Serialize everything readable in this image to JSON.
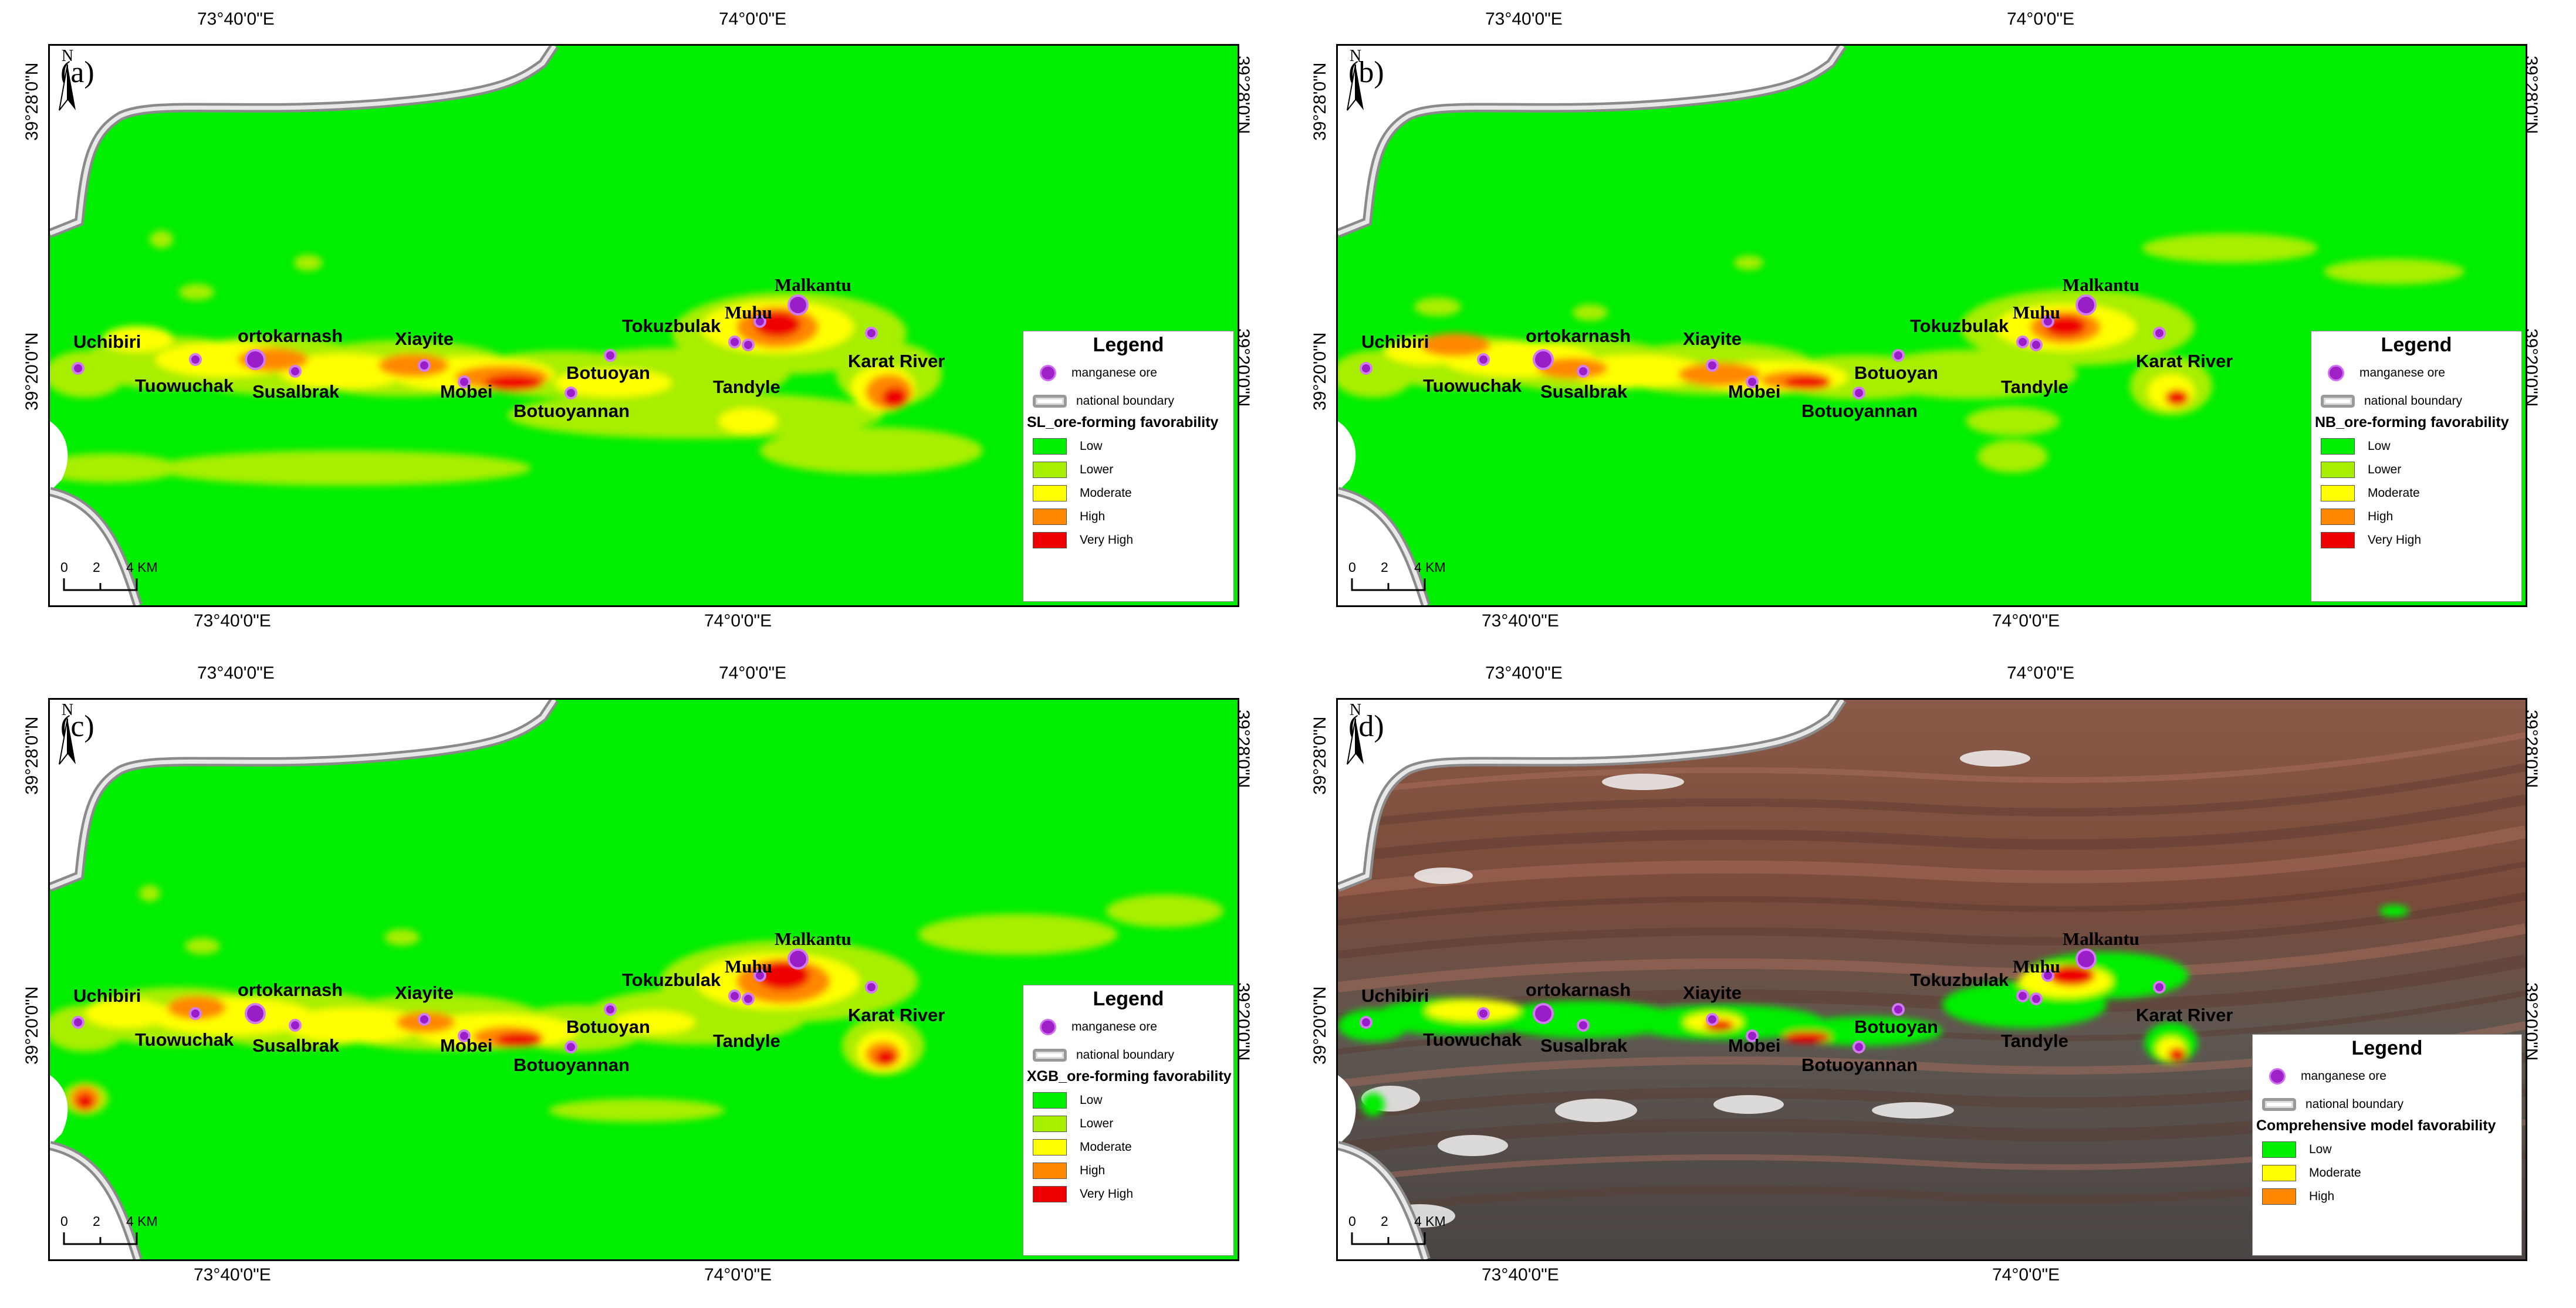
{
  "coords": {
    "lon_left": "73°40'0\"E",
    "lon_right": "74°0'0\"E",
    "lat_top": "39°28'0\"N",
    "lat_mid": "39°20'0\"N"
  },
  "sites": [
    {
      "name": "Uchibiri",
      "font": "sans"
    },
    {
      "name": "ortokarnash",
      "font": "sans"
    },
    {
      "name": "Tuowuchak",
      "font": "sans"
    },
    {
      "name": "Susalbrak",
      "font": "sans"
    },
    {
      "name": "Xiayite",
      "font": "sans"
    },
    {
      "name": "Mobei",
      "font": "sans"
    },
    {
      "name": "Botuoyan",
      "font": "sans"
    },
    {
      "name": "Botuoyannan",
      "font": "sans"
    },
    {
      "name": "Tokuzbulak",
      "font": "sans"
    },
    {
      "name": "Muhu",
      "font": "serif"
    },
    {
      "name": "Malkantu",
      "font": "serif"
    },
    {
      "name": "Tandyle",
      "font": "sans"
    },
    {
      "name": "Karat River",
      "font": "sans"
    }
  ],
  "legend": {
    "title": "Legend",
    "ore": "manganese ore",
    "boundary": "national boundary"
  },
  "scale": {
    "zero": "0",
    "two": "2",
    "four": "4 KM"
  },
  "north_letter": "N",
  "colors": {
    "Low": "#00ee00",
    "Lower": "#a8ee00",
    "Moderate": "#ffff00",
    "High": "#ff8800",
    "Very High": "#ee0000"
  },
  "panels": [
    {
      "label": "(a)",
      "background": "green",
      "favorability_title": "SL_ore-forming favorability",
      "classes": [
        "Low",
        "Lower",
        "Moderate",
        "High",
        "Very High"
      ]
    },
    {
      "label": "(b)",
      "background": "green",
      "favorability_title": "NB_ore-forming favorability",
      "classes": [
        "Low",
        "Lower",
        "Moderate",
        "High",
        "Very High"
      ]
    },
    {
      "label": "(c)",
      "background": "green",
      "favorability_title": "XGB_ore-forming favorability",
      "classes": [
        "Low",
        "Lower",
        "Moderate",
        "High",
        "Very High"
      ]
    },
    {
      "label": "(d)",
      "background": "satellite",
      "favorability_title": "Comprehensive model favorability",
      "classes": [
        "Low",
        "Moderate",
        "High"
      ]
    }
  ]
}
